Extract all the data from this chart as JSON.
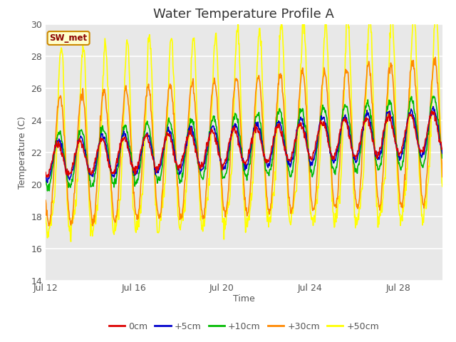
{
  "title": "Water Temperature Profile A",
  "xlabel": "Time",
  "ylabel": "Temperature (C)",
  "ylim": [
    14,
    30
  ],
  "xlim_days": [
    0,
    18
  ],
  "x_tick_labels": [
    "Jul 12",
    "Jul 16",
    "Jul 20",
    "Jul 24",
    "Jul 28"
  ],
  "x_tick_positions": [
    0,
    4,
    8,
    12,
    16
  ],
  "series_order": [
    "+50cm",
    "+30cm",
    "+10cm",
    "+5cm",
    "0cm"
  ],
  "series": {
    "0cm": {
      "color": "#dd0000",
      "lw": 1.2
    },
    "+5cm": {
      "color": "#0000cc",
      "lw": 1.2
    },
    "+10cm": {
      "color": "#00bb00",
      "lw": 1.2
    },
    "+30cm": {
      "color": "#ff8800",
      "lw": 1.2
    },
    "+50cm": {
      "color": "#ffff00",
      "lw": 1.2
    }
  },
  "annotation_text": "SW_met",
  "annotation_color": "#8b0000",
  "plot_bg": "#e8e8e8",
  "grid_color": "#ffffff",
  "title_fontsize": 13,
  "label_fontsize": 9,
  "tick_fontsize": 9,
  "fig_w": 6.4,
  "fig_h": 4.8
}
